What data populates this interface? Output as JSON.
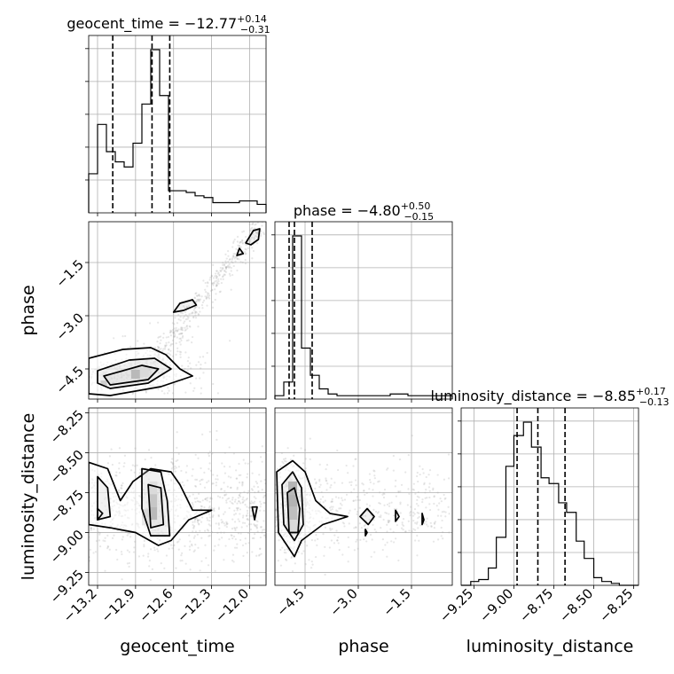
{
  "chart_data": {
    "type": "corner",
    "parameters": [
      "geocent_time",
      "phase",
      "luminosity_distance"
    ],
    "titles": [
      {
        "main": "geocent_time = −12.77",
        "sup": "+0.14",
        "sub": "−0.31"
      },
      {
        "main": "phase = −4.80",
        "sup": "+0.50",
        "sub": "−0.15"
      },
      {
        "main": "luminosity_distance = −8.85",
        "sup": "+0.17",
        "sub": "−0.13"
      }
    ],
    "axis_labels": {
      "x": [
        "geocent_time",
        "phase",
        "luminosity_distance"
      ],
      "y": [
        "phase",
        "luminosity_distance"
      ]
    },
    "ranges": {
      "geocent_time": [
        -13.27,
        -11.87
      ],
      "phase": [
        -5.35,
        -0.35
      ],
      "luminosity_distance": [
        -9.33,
        -8.22
      ]
    },
    "ticks": {
      "geocent_time": {
        "values": [
          -13.2,
          -12.9,
          -12.6,
          -12.3,
          -12.0
        ],
        "labels": [
          "−13.2",
          "−12.9",
          "−12.6",
          "−12.3",
          "−12.0"
        ]
      },
      "phase": {
        "values": [
          -4.5,
          -3.0,
          -1.5
        ],
        "labels": [
          "−4.5",
          "−3.0",
          "−1.5"
        ]
      },
      "luminosity_distance": {
        "values": [
          -9.25,
          -9.0,
          -8.75,
          -8.5,
          -8.25
        ],
        "labels": [
          "−9.25",
          "−9.00",
          "−8.75",
          "−8.50",
          "−8.25"
        ]
      }
    },
    "quantiles": {
      "geocent_time": [
        -13.08,
        -12.77,
        -12.63
      ],
      "phase": [
        -4.95,
        -4.8,
        -4.3
      ],
      "luminosity_distance": [
        -8.98,
        -8.85,
        -8.68
      ]
    },
    "histograms": {
      "geocent_time": {
        "edges": [
          -13.27,
          -13.2,
          -13.13,
          -13.06,
          -12.99,
          -12.92,
          -12.85,
          -12.78,
          -12.71,
          -12.64,
          -12.57,
          -12.5,
          -12.43,
          -12.36,
          -12.29,
          -12.22,
          -12.15,
          -12.08,
          -12.01,
          -11.94,
          -11.87
        ],
        "counts": [
          0.23,
          0.52,
          0.36,
          0.3,
          0.27,
          0.41,
          0.64,
          0.96,
          0.69,
          0.13,
          0.13,
          0.12,
          0.1,
          0.09,
          0.06,
          0.06,
          0.06,
          0.07,
          0.07,
          0.05
        ]
      },
      "phase": {
        "edges": [
          -5.35,
          -5.1,
          -4.85,
          -4.6,
          -4.35,
          -4.1,
          -3.85,
          -3.6,
          -3.35,
          -3.1,
          -2.85,
          -2.6,
          -2.35,
          -2.1,
          -1.85,
          -1.6,
          -1.35,
          -1.1,
          -0.85,
          -0.6,
          -0.35
        ],
        "counts": [
          0.02,
          0.1,
          0.96,
          0.3,
          0.14,
          0.06,
          0.03,
          0.02,
          0.02,
          0.02,
          0.02,
          0.02,
          0.02,
          0.03,
          0.03,
          0.02,
          0.02,
          0.02,
          0.02,
          0.02
        ]
      },
      "luminosity_distance": {
        "edges": [
          -9.33,
          -9.27,
          -9.22,
          -9.16,
          -9.11,
          -9.05,
          -9.0,
          -8.94,
          -8.89,
          -8.83,
          -8.78,
          -8.72,
          -8.67,
          -8.61,
          -8.56,
          -8.5,
          -8.45,
          -8.39,
          -8.34,
          -8.28,
          -8.22
        ],
        "counts": [
          0.0,
          0.02,
          0.03,
          0.09,
          0.25,
          0.62,
          0.78,
          0.85,
          0.72,
          0.56,
          0.53,
          0.43,
          0.38,
          0.23,
          0.14,
          0.04,
          0.02,
          0.01,
          0.0,
          0.0
        ]
      }
    },
    "contours": {
      "phase_vs_geocent_time": [
        [
          [
            -13.27,
            -4.2
          ],
          [
            -13.0,
            -3.95
          ],
          [
            -12.78,
            -3.9
          ],
          [
            -12.66,
            -4.1
          ],
          [
            -12.55,
            -4.5
          ],
          [
            -12.45,
            -4.7
          ],
          [
            -12.7,
            -5.0
          ],
          [
            -13.1,
            -5.25
          ],
          [
            -13.27,
            -5.2
          ]
        ],
        [
          [
            -13.2,
            -4.55
          ],
          [
            -12.95,
            -4.25
          ],
          [
            -12.75,
            -4.2
          ],
          [
            -12.62,
            -4.5
          ],
          [
            -12.8,
            -4.9
          ],
          [
            -13.1,
            -5.05
          ],
          [
            -13.2,
            -4.9
          ]
        ],
        [
          [
            -13.15,
            -4.7
          ],
          [
            -12.85,
            -4.4
          ],
          [
            -12.72,
            -4.5
          ],
          [
            -12.8,
            -4.8
          ],
          [
            -13.1,
            -4.95
          ]
        ],
        [
          [
            -12.6,
            -2.9
          ],
          [
            -12.55,
            -2.65
          ],
          [
            -12.45,
            -2.55
          ],
          [
            -12.42,
            -2.7
          ],
          [
            -12.52,
            -2.85
          ]
        ],
        [
          [
            -12.03,
            -0.95
          ],
          [
            -11.97,
            -0.6
          ],
          [
            -11.92,
            -0.55
          ],
          [
            -11.93,
            -0.85
          ],
          [
            -11.99,
            -1.0
          ]
        ],
        [
          [
            -12.1,
            -1.3
          ],
          [
            -12.08,
            -1.1
          ],
          [
            -12.05,
            -1.25
          ]
        ]
      ],
      "luminosity_distance_vs_geocent_time": [
        [
          [
            -13.27,
            -8.56
          ],
          [
            -13.12,
            -8.6
          ],
          [
            -13.02,
            -8.8
          ],
          [
            -12.92,
            -8.68
          ],
          [
            -12.78,
            -8.6
          ],
          [
            -12.62,
            -8.62
          ],
          [
            -12.55,
            -8.7
          ],
          [
            -12.45,
            -8.86
          ],
          [
            -12.3,
            -8.86
          ],
          [
            -12.48,
            -8.92
          ],
          [
            -12.62,
            -9.05
          ],
          [
            -12.72,
            -9.08
          ],
          [
            -12.9,
            -9.0
          ],
          [
            -13.1,
            -8.97
          ],
          [
            -13.27,
            -8.95
          ]
        ],
        [
          [
            -13.2,
            -8.65
          ],
          [
            -13.12,
            -8.72
          ],
          [
            -13.1,
            -8.9
          ],
          [
            -13.2,
            -8.92
          ]
        ],
        [
          [
            -12.85,
            -8.6
          ],
          [
            -12.7,
            -8.62
          ],
          [
            -12.65,
            -8.8
          ],
          [
            -12.63,
            -9.02
          ],
          [
            -12.78,
            -9.02
          ],
          [
            -12.85,
            -8.85
          ]
        ],
        [
          [
            -12.8,
            -8.7
          ],
          [
            -12.7,
            -8.72
          ],
          [
            -12.68,
            -8.95
          ],
          [
            -12.78,
            -8.97
          ]
        ],
        [
          [
            -13.2,
            -8.85
          ],
          [
            -13.16,
            -8.88
          ],
          [
            -13.2,
            -8.92
          ]
        ],
        [
          [
            -11.98,
            -8.84
          ],
          [
            -11.96,
            -8.92
          ],
          [
            -11.94,
            -8.84
          ]
        ]
      ],
      "luminosity_distance_vs_phase": [
        [
          [
            -5.3,
            -8.62
          ],
          [
            -4.85,
            -8.55
          ],
          [
            -4.5,
            -8.62
          ],
          [
            -4.2,
            -8.8
          ],
          [
            -3.8,
            -8.88
          ],
          [
            -3.3,
            -8.9
          ],
          [
            -4.0,
            -8.95
          ],
          [
            -4.6,
            -9.05
          ],
          [
            -4.8,
            -9.15
          ],
          [
            -5.25,
            -9.0
          ]
        ],
        [
          [
            -5.15,
            -8.7
          ],
          [
            -4.85,
            -8.62
          ],
          [
            -4.6,
            -8.72
          ],
          [
            -4.55,
            -8.95
          ],
          [
            -4.8,
            -9.05
          ],
          [
            -5.1,
            -8.95
          ]
        ],
        [
          [
            -5.0,
            -8.75
          ],
          [
            -4.8,
            -8.72
          ],
          [
            -4.65,
            -8.85
          ],
          [
            -4.7,
            -9.0
          ],
          [
            -4.95,
            -9.0
          ]
        ],
        [
          [
            -2.95,
            -8.9
          ],
          [
            -2.75,
            -8.85
          ],
          [
            -2.55,
            -8.9
          ],
          [
            -2.72,
            -8.95
          ]
        ],
        [
          [
            -1.95,
            -8.86
          ],
          [
            -1.85,
            -8.9
          ],
          [
            -1.95,
            -8.93
          ]
        ],
        [
          [
            -1.2,
            -8.88
          ],
          [
            -1.15,
            -8.92
          ],
          [
            -1.2,
            -8.95
          ]
        ],
        [
          [
            -2.8,
            -8.98
          ],
          [
            -2.75,
            -9.0
          ],
          [
            -2.8,
            -9.02
          ]
        ]
      ]
    },
    "density_blocks": {
      "phase_vs_geocent_time": [
        {
          "x": -12.9,
          "y": -4.65,
          "dx": 0.07,
          "dy": 0.25,
          "shade": 0.35
        },
        {
          "x": -12.83,
          "y": -4.6,
          "dx": 0.07,
          "dy": 0.25,
          "shade": 0.1
        },
        {
          "x": -13.15,
          "y": -4.9,
          "dx": 0.05,
          "dy": 0.15,
          "shade": 0.2
        }
      ],
      "luminosity_distance_vs_geocent_time": [
        {
          "x": -12.76,
          "y": -8.72,
          "dx": 0.06,
          "dy": 0.08,
          "shade": 0.1
        },
        {
          "x": -12.76,
          "y": -8.8,
          "dx": 0.06,
          "dy": 0.08,
          "shade": 0.25
        },
        {
          "x": -12.76,
          "y": -8.88,
          "dx": 0.06,
          "dy": 0.08,
          "shade": 0.35
        },
        {
          "x": -12.82,
          "y": -8.88,
          "dx": 0.06,
          "dy": 0.05,
          "shade": 0.15
        },
        {
          "x": -12.82,
          "y": -8.93,
          "dx": 0.06,
          "dy": 0.05,
          "shade": 0.1
        }
      ],
      "luminosity_distance_vs_phase": [
        {
          "x": -4.85,
          "y": -8.72,
          "dx": 0.25,
          "dy": 0.08,
          "shade": 0.35
        },
        {
          "x": -4.85,
          "y": -8.8,
          "dx": 0.25,
          "dy": 0.08,
          "shade": 0.4
        },
        {
          "x": -4.85,
          "y": -8.88,
          "dx": 0.25,
          "dy": 0.08,
          "shade": 0.3
        },
        {
          "x": -4.85,
          "y": -8.96,
          "dx": 0.25,
          "dy": 0.08,
          "shade": 0.1
        }
      ]
    },
    "grid": true,
    "colors": {
      "line": "#000000",
      "grid": "#b0b0b0",
      "scatter": "#9e9e9e"
    }
  }
}
